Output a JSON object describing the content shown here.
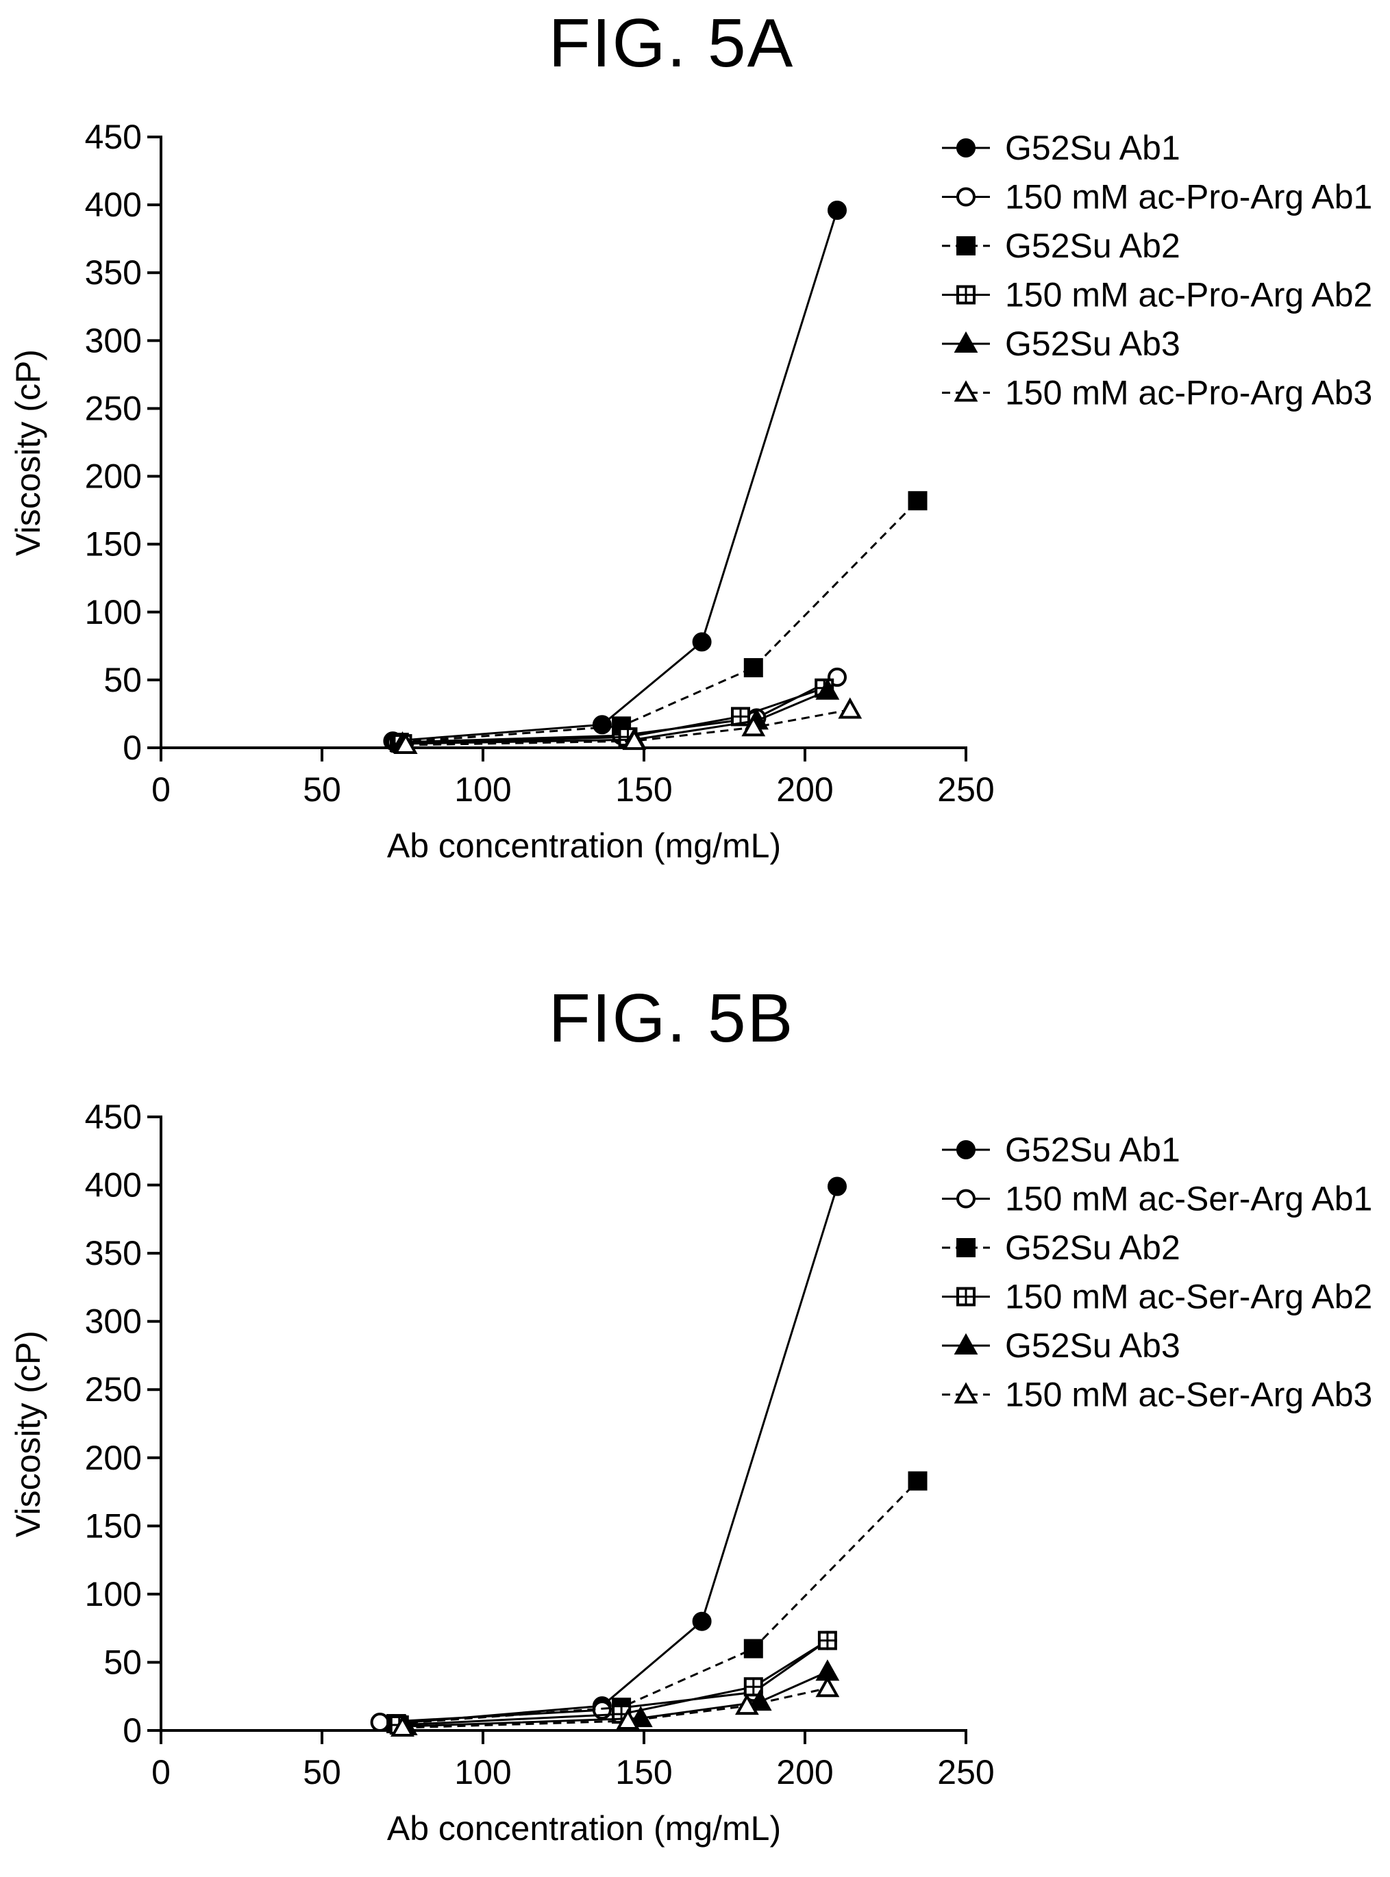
{
  "chart_data": [
    {
      "type": "line",
      "title": "FIG. 5A",
      "xlabel": "Ab concentration (mg/mL)",
      "ylabel": "Viscosity (cP)",
      "xlim": [
        0,
        250
      ],
      "ylim": [
        0,
        450
      ],
      "xticks": [
        0,
        50,
        100,
        150,
        200,
        250
      ],
      "yticks": [
        0,
        50,
        100,
        150,
        200,
        250,
        300,
        350,
        400,
        450
      ],
      "grid": false,
      "legend_position": "top-right",
      "series": [
        {
          "name": "G52Su Ab1",
          "marker": "circle-filled",
          "dash": false,
          "x": [
            72,
            137,
            168,
            210
          ],
          "y": [
            5,
            17,
            78,
            396
          ]
        },
        {
          "name": "150 mM ac-Pro-Arg Ab1",
          "marker": "circle-open",
          "dash": false,
          "x": [
            73,
            143,
            185,
            210
          ],
          "y": [
            4,
            9,
            22,
            52
          ]
        },
        {
          "name": "G52Su Ab2",
          "marker": "square-filled",
          "dash": true,
          "x": [
            74,
            143,
            184,
            235
          ],
          "y": [
            4,
            16,
            59,
            182
          ]
        },
        {
          "name": "150 mM ac-Pro-Arg Ab2",
          "marker": "square-crossed",
          "dash": false,
          "x": [
            75,
            145,
            180,
            206
          ],
          "y": [
            3,
            8,
            23,
            44
          ]
        },
        {
          "name": "G52Su Ab3",
          "marker": "triangle-filled",
          "dash": false,
          "x": [
            75,
            147,
            185,
            207
          ],
          "y": [
            3,
            6,
            20,
            42
          ]
        },
        {
          "name": "150 mM ac-Pro-Arg Ab3",
          "marker": "triangle-open",
          "dash": true,
          "x": [
            76,
            147,
            184,
            214
          ],
          "y": [
            2,
            5,
            15,
            28
          ]
        }
      ]
    },
    {
      "type": "line",
      "title": "FIG. 5B",
      "xlabel": "Ab concentration (mg/mL)",
      "ylabel": "Viscosity (cP)",
      "xlim": [
        0,
        250
      ],
      "ylim": [
        0,
        450
      ],
      "xticks": [
        0,
        50,
        100,
        150,
        200,
        250
      ],
      "yticks": [
        0,
        50,
        100,
        150,
        200,
        250,
        300,
        350,
        400,
        450
      ],
      "grid": false,
      "legend_position": "top-right",
      "series": [
        {
          "name": "G52Su Ab1",
          "marker": "circle-filled",
          "dash": false,
          "x": [
            72,
            137,
            168,
            210
          ],
          "y": [
            5,
            18,
            80,
            399
          ]
        },
        {
          "name": "150 mM ac-Ser-Arg Ab1",
          "marker": "circle-open",
          "dash": false,
          "x": [
            68,
            137,
            184,
            207
          ],
          "y": [
            6,
            15,
            28,
            66
          ]
        },
        {
          "name": "G52Su Ab2",
          "marker": "square-filled",
          "dash": true,
          "x": [
            73,
            143,
            184,
            235
          ],
          "y": [
            5,
            17,
            60,
            183
          ]
        },
        {
          "name": "150 mM ac-Ser-Arg Ab2",
          "marker": "square-crossed",
          "dash": false,
          "x": [
            74,
            143,
            184,
            207
          ],
          "y": [
            4,
            12,
            32,
            66
          ]
        },
        {
          "name": "G52Su Ab3",
          "marker": "triangle-filled",
          "dash": false,
          "x": [
            76,
            149,
            186,
            207
          ],
          "y": [
            3,
            9,
            21,
            43
          ]
        },
        {
          "name": "150 mM ac-Ser-Arg Ab3",
          "marker": "triangle-open",
          "dash": true,
          "x": [
            75,
            145,
            182,
            207
          ],
          "y": [
            2,
            7,
            18,
            31
          ]
        }
      ]
    }
  ]
}
